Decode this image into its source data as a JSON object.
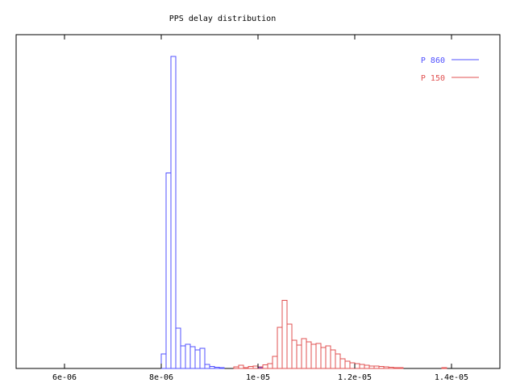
{
  "chart_data": {
    "type": "histogram",
    "title": "PPS delay distribution",
    "xlabel": "",
    "ylabel": "",
    "xlim": [
      5e-06,
      1.5e-05
    ],
    "ylim": [
      0,
      100
    ],
    "grid": false,
    "legend_position": "top-right",
    "x_ticks": [
      {
        "value": 6e-06,
        "label": "6e-06"
      },
      {
        "value": 8e-06,
        "label": "8e-06"
      },
      {
        "value": 1e-05,
        "label": "1e-05"
      },
      {
        "value": 1.2e-05,
        "label": "1.2e-05"
      },
      {
        "value": 1.4e-05,
        "label": "1.4e-05"
      }
    ],
    "series": [
      {
        "name": "P 860",
        "color": "#5050ff",
        "bins": [
          {
            "x0": 8e-06,
            "x1": 8.1e-06,
            "count": 4.7
          },
          {
            "x0": 8.1e-06,
            "x1": 8.2e-06,
            "count": 62.6
          },
          {
            "x0": 8.2e-06,
            "x1": 8.3e-06,
            "count": 100
          },
          {
            "x0": 8.3e-06,
            "x1": 8.4e-06,
            "count": 12.9
          },
          {
            "x0": 8.4e-06,
            "x1": 8.5e-06,
            "count": 7.2
          },
          {
            "x0": 8.5e-06,
            "x1": 8.6e-06,
            "count": 7.8
          },
          {
            "x0": 8.6e-06,
            "x1": 8.7e-06,
            "count": 7.0
          },
          {
            "x0": 8.7e-06,
            "x1": 8.8e-06,
            "count": 5.9
          },
          {
            "x0": 8.8e-06,
            "x1": 8.9e-06,
            "count": 6.4
          },
          {
            "x0": 8.9e-06,
            "x1": 9e-06,
            "count": 1.3
          },
          {
            "x0": 9e-06,
            "x1": 9.1e-06,
            "count": 0.6
          },
          {
            "x0": 9.1e-06,
            "x1": 9.2e-06,
            "count": 0.4
          },
          {
            "x0": 9.2e-06,
            "x1": 9.3e-06,
            "count": 0.3
          },
          {
            "x0": 1e-05,
            "x1": 1.01e-05,
            "count": 0.3
          },
          {
            "x0": 1.38e-05,
            "x1": 1.39e-05,
            "count": 0.3
          }
        ]
      },
      {
        "name": "P 150",
        "color": "#e05050",
        "bins": [
          {
            "x0": 9.5e-06,
            "x1": 9.6e-06,
            "count": 0.5
          },
          {
            "x0": 9.6e-06,
            "x1": 9.7e-06,
            "count": 1.0
          },
          {
            "x0": 9.7e-06,
            "x1": 9.8e-06,
            "count": 0.3
          },
          {
            "x0": 9.8e-06,
            "x1": 9.9e-06,
            "count": 0.6
          },
          {
            "x0": 9.9e-06,
            "x1": 1e-05,
            "count": 0.8
          },
          {
            "x0": 1e-05,
            "x1": 1.01e-05,
            "count": 0.5
          },
          {
            "x0": 1.01e-05,
            "x1": 1.02e-05,
            "count": 1.2
          },
          {
            "x0": 1.02e-05,
            "x1": 1.03e-05,
            "count": 1.6
          },
          {
            "x0": 1.03e-05,
            "x1": 1.04e-05,
            "count": 3.9
          },
          {
            "x0": 1.04e-05,
            "x1": 1.05e-05,
            "count": 13.2
          },
          {
            "x0": 1.05e-05,
            "x1": 1.06e-05,
            "count": 21.9
          },
          {
            "x0": 1.06e-05,
            "x1": 1.07e-05,
            "count": 14.2
          },
          {
            "x0": 1.07e-05,
            "x1": 1.08e-05,
            "count": 9.0
          },
          {
            "x0": 1.08e-05,
            "x1": 1.09e-05,
            "count": 7.5
          },
          {
            "x0": 1.09e-05,
            "x1": 1.1e-05,
            "count": 9.6
          },
          {
            "x0": 1.1e-05,
            "x1": 1.11e-05,
            "count": 8.5
          },
          {
            "x0": 1.11e-05,
            "x1": 1.12e-05,
            "count": 7.8
          },
          {
            "x0": 1.12e-05,
            "x1": 1.13e-05,
            "count": 8.0
          },
          {
            "x0": 1.13e-05,
            "x1": 1.14e-05,
            "count": 6.7
          },
          {
            "x0": 1.14e-05,
            "x1": 1.15e-05,
            "count": 7.2
          },
          {
            "x0": 1.15e-05,
            "x1": 1.16e-05,
            "count": 6.0
          },
          {
            "x0": 1.16e-05,
            "x1": 1.17e-05,
            "count": 4.7
          },
          {
            "x0": 1.17e-05,
            "x1": 1.18e-05,
            "count": 3.1
          },
          {
            "x0": 1.18e-05,
            "x1": 1.19e-05,
            "count": 2.3
          },
          {
            "x0": 1.19e-05,
            "x1": 1.2e-05,
            "count": 1.8
          },
          {
            "x0": 1.2e-05,
            "x1": 1.21e-05,
            "count": 1.6
          },
          {
            "x0": 1.21e-05,
            "x1": 1.22e-05,
            "count": 1.3
          },
          {
            "x0": 1.22e-05,
            "x1": 1.23e-05,
            "count": 1.0
          },
          {
            "x0": 1.23e-05,
            "x1": 1.24e-05,
            "count": 0.8
          },
          {
            "x0": 1.24e-05,
            "x1": 1.25e-05,
            "count": 0.8
          },
          {
            "x0": 1.25e-05,
            "x1": 1.26e-05,
            "count": 0.6
          },
          {
            "x0": 1.26e-05,
            "x1": 1.27e-05,
            "count": 0.5
          },
          {
            "x0": 1.27e-05,
            "x1": 1.28e-05,
            "count": 0.4
          },
          {
            "x0": 1.28e-05,
            "x1": 1.29e-05,
            "count": 0.3
          },
          {
            "x0": 1.29e-05,
            "x1": 1.3e-05,
            "count": 0.3
          },
          {
            "x0": 1.38e-05,
            "x1": 1.39e-05,
            "count": 0.3
          }
        ]
      }
    ]
  }
}
